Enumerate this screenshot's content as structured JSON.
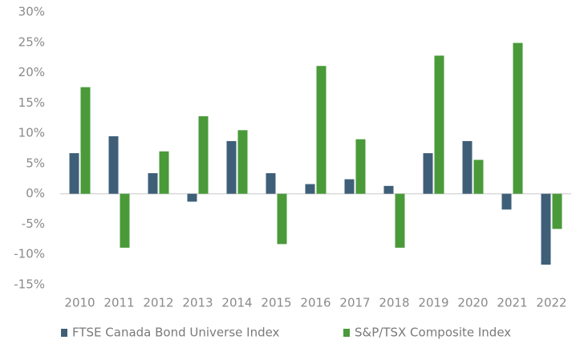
{
  "chart_data": {
    "type": "bar",
    "categories": [
      "2010",
      "2011",
      "2012",
      "2013",
      "2014",
      "2015",
      "2016",
      "2017",
      "2018",
      "2019",
      "2020",
      "2021",
      "2022"
    ],
    "series": [
      {
        "name": "FTSE Canada Bond Universe Index",
        "color": "#3f5f78",
        "values": [
          6.7,
          9.5,
          3.4,
          -1.3,
          8.7,
          3.4,
          1.6,
          2.4,
          1.3,
          6.7,
          8.7,
          -2.6,
          -11.7
        ]
      },
      {
        "name": "S&P/TSX Composite Index",
        "color": "#4a9a3a",
        "values": [
          17.6,
          -8.9,
          7.0,
          12.8,
          10.5,
          -8.3,
          21.1,
          9.0,
          -8.9,
          22.8,
          5.6,
          24.9,
          -5.8
        ]
      }
    ],
    "ylim": [
      -15,
      30
    ],
    "yticks": [
      {
        "value": -15,
        "label": "-15%"
      },
      {
        "value": -10,
        "label": "-10%"
      },
      {
        "value": -5,
        "label": "-5%"
      },
      {
        "value": 0,
        "label": "0%"
      },
      {
        "value": 5,
        "label": "5%"
      },
      {
        "value": 10,
        "label": "10%"
      },
      {
        "value": 15,
        "label": "15%"
      },
      {
        "value": 20,
        "label": "20%"
      },
      {
        "value": 25,
        "label": "25%"
      },
      {
        "value": 30,
        "label": "30%"
      }
    ],
    "legend": "bottom"
  }
}
